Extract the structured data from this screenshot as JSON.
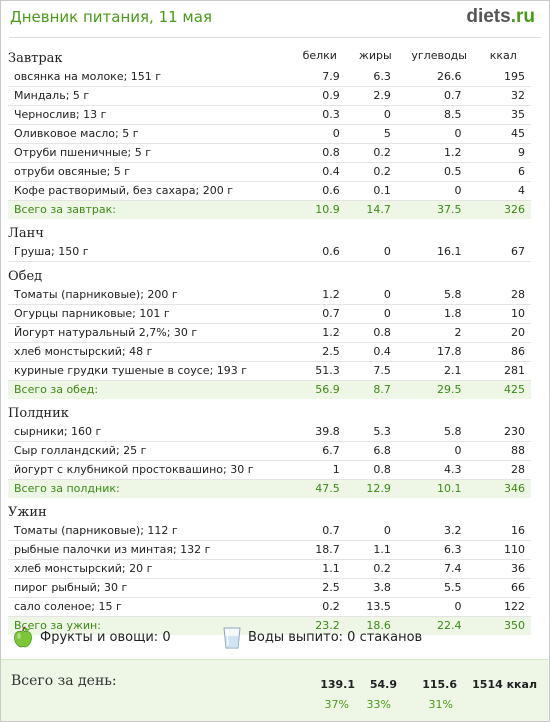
{
  "header": {
    "title": "Дневник питания, 11 мая",
    "brand_main": "diets",
    "brand_suffix": ".ru"
  },
  "columns": [
    "белки",
    "жиры",
    "углеводы",
    "ккал"
  ],
  "meals": [
    {
      "name": "Завтрак",
      "items": [
        {
          "name": "овсянка на молоке; 151 г",
          "protein": "7.9",
          "fat": "6.3",
          "carbs": "26.6",
          "kcal": "195"
        },
        {
          "name": "Миндаль; 5 г",
          "protein": "0.9",
          "fat": "2.9",
          "carbs": "0.7",
          "kcal": "32"
        },
        {
          "name": "Чернослив; 13 г",
          "protein": "0.3",
          "fat": "0",
          "carbs": "8.5",
          "kcal": "35"
        },
        {
          "name": "Оливковое масло; 5 г",
          "protein": "0",
          "fat": "5",
          "carbs": "0",
          "kcal": "45"
        },
        {
          "name": "Отруби пшеничные; 5 г",
          "protein": "0.8",
          "fat": "0.2",
          "carbs": "1.2",
          "kcal": "9"
        },
        {
          "name": "отруби овсяные; 5 г",
          "protein": "0.4",
          "fat": "0.2",
          "carbs": "0.5",
          "kcal": "6"
        },
        {
          "name": "Кофе растворимый, без сахара; 200 г",
          "protein": "0.6",
          "fat": "0.1",
          "carbs": "0",
          "kcal": "4"
        }
      ],
      "total": {
        "label": "Всего за завтрак:",
        "protein": "10.9",
        "fat": "14.7",
        "carbs": "37.5",
        "kcal": "326"
      }
    },
    {
      "name": "Ланч",
      "items": [
        {
          "name": "Груша; 150 г",
          "protein": "0.6",
          "fat": "0",
          "carbs": "16.1",
          "kcal": "67"
        }
      ],
      "total": null
    },
    {
      "name": "Обед",
      "items": [
        {
          "name": "Томаты (парниковые); 200 г",
          "protein": "1.2",
          "fat": "0",
          "carbs": "5.8",
          "kcal": "28"
        },
        {
          "name": "Огурцы парниковые; 101 г",
          "protein": "0.7",
          "fat": "0",
          "carbs": "1.8",
          "kcal": "10"
        },
        {
          "name": "Йогурт натуральный 2,7%; 30 г",
          "protein": "1.2",
          "fat": "0.8",
          "carbs": "2",
          "kcal": "20"
        },
        {
          "name": "хлеб монстырский; 48 г",
          "protein": "2.5",
          "fat": "0.4",
          "carbs": "17.8",
          "kcal": "86"
        },
        {
          "name": "куриные грудки тушеные в соусе; 193 г",
          "protein": "51.3",
          "fat": "7.5",
          "carbs": "2.1",
          "kcal": "281"
        }
      ],
      "total": {
        "label": "Всего за обед:",
        "protein": "56.9",
        "fat": "8.7",
        "carbs": "29.5",
        "kcal": "425"
      }
    },
    {
      "name": "Полдник",
      "items": [
        {
          "name": "сырники; 160 г",
          "protein": "39.8",
          "fat": "5.3",
          "carbs": "5.8",
          "kcal": "230"
        },
        {
          "name": "Сыр голландский; 25 г",
          "protein": "6.7",
          "fat": "6.8",
          "carbs": "0",
          "kcal": "88"
        },
        {
          "name": "йогурт с клубникой простоквашино; 30 г",
          "protein": "1",
          "fat": "0.8",
          "carbs": "4.3",
          "kcal": "28"
        }
      ],
      "total": {
        "label": "Всего за полдник:",
        "protein": "47.5",
        "fat": "12.9",
        "carbs": "10.1",
        "kcal": "346"
      }
    },
    {
      "name": "Ужин",
      "items": [
        {
          "name": "Томаты (парниковые); 112 г",
          "protein": "0.7",
          "fat": "0",
          "carbs": "3.2",
          "kcal": "16"
        },
        {
          "name": "рыбные палочки из минтая; 132 г",
          "protein": "18.7",
          "fat": "1.1",
          "carbs": "6.3",
          "kcal": "110"
        },
        {
          "name": "хлеб монстырский; 20 г",
          "protein": "1.1",
          "fat": "0.2",
          "carbs": "7.4",
          "kcal": "36"
        },
        {
          "name": "пирог рыбный; 30 г",
          "protein": "2.5",
          "fat": "3.8",
          "carbs": "5.5",
          "kcal": "66"
        },
        {
          "name": "сало соленое; 15 г",
          "protein": "0.2",
          "fat": "13.5",
          "carbs": "0",
          "kcal": "122"
        }
      ],
      "total": {
        "label": "Всего за ужин:",
        "protein": "23.2",
        "fat": "18.6",
        "carbs": "22.4",
        "kcal": "350"
      }
    }
  ],
  "extras": {
    "fruits_label": "Фрукты и овощи: 0",
    "water_label": "Воды выпито: 0 стаканов"
  },
  "day_total": {
    "label": "Всего за день:",
    "protein": "139.1",
    "fat": "54.9",
    "carbs": "115.6",
    "kcal": "1514 ккал",
    "protein_pct": "37%",
    "fat_pct": "33%",
    "carbs_pct": "31%"
  },
  "colors": {
    "accent_green": "#4a9a18",
    "total_row_bg": "#eef7e6",
    "total_text": "#3c8a16"
  },
  "icons": {
    "fruit": "green-apple-icon",
    "water": "water-glass-icon"
  }
}
